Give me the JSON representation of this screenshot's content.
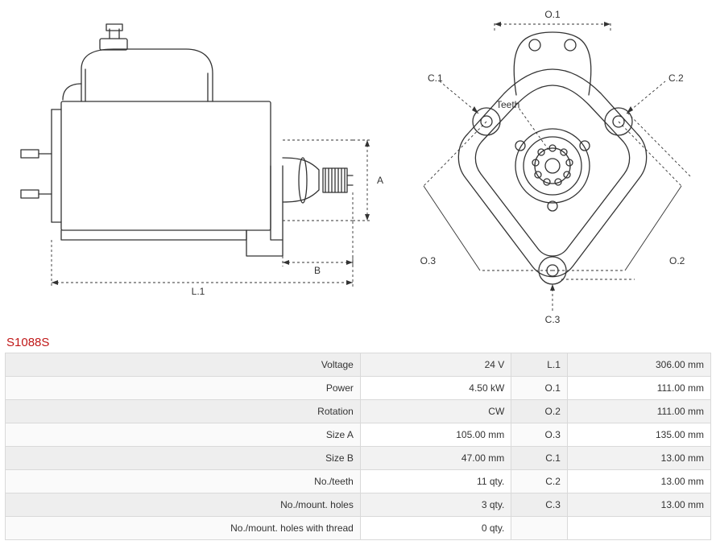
{
  "part_id": "S1088S",
  "colors": {
    "stroke": "#333333",
    "dash": "#333333",
    "accent": "#c01717",
    "table_row_alt": "#f2f2f2",
    "table_border": "#d9d9d9",
    "background": "#ffffff"
  },
  "fonts": {
    "body_size_pt": 9,
    "label_size_pt": 9,
    "partid_size_pt": 11
  },
  "side_view": {
    "dim_labels": {
      "L1": "L.1",
      "A": "A",
      "B": "B"
    },
    "stroke_width": 1.3
  },
  "front_view": {
    "labels": {
      "O1": "O.1",
      "O2": "O.2",
      "O3": "O.3",
      "C1": "C.1",
      "C2": "C.2",
      "C3": "C.3",
      "teeth": "Teeth"
    },
    "stroke_width": 1.3
  },
  "spec_table": {
    "columns": [
      "label1",
      "val1",
      "label2",
      "val2"
    ],
    "rows": [
      [
        "Voltage",
        "24 V",
        "L.1",
        "306.00 mm"
      ],
      [
        "Power",
        "4.50 kW",
        "O.1",
        "111.00 mm"
      ],
      [
        "Rotation",
        "CW",
        "O.2",
        "111.00 mm"
      ],
      [
        "Size A",
        "105.00 mm",
        "O.3",
        "135.00 mm"
      ],
      [
        "Size B",
        "47.00 mm",
        "C.1",
        "13.00 mm"
      ],
      [
        "No./teeth",
        "11 qty.",
        "C.2",
        "13.00 mm"
      ],
      [
        "No./mount. holes",
        "3 qty.",
        "C.3",
        "13.00 mm"
      ],
      [
        "No./mount. holes with thread",
        "0 qty.",
        "",
        ""
      ]
    ]
  }
}
